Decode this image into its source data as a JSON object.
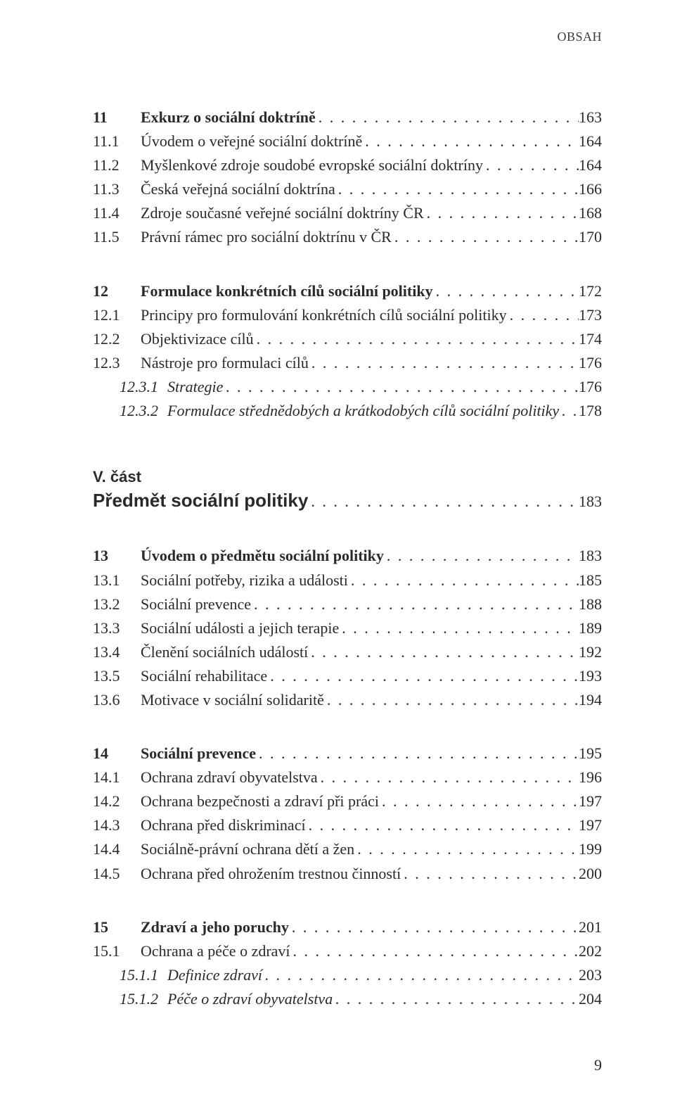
{
  "running_head": "OBSAH",
  "footer_page": "9",
  "leader_dots": ". . . . . . . . . . . . . . . . . . . . . . . . . . . . . . . . . . . . . . . . . . . . . . . . . . . . . . . . . . . . . . . . . . . . . . . . . . . . . . . . . . . . . . . . . . . . . . . . . . . . . . . . . . . . . . . . . . . . . . . .",
  "part": {
    "label": "V. část",
    "title": "Předmět sociální politiky",
    "page": "183"
  },
  "sections": [
    {
      "rows": [
        {
          "num": "11",
          "title": "Exkurz o sociální doktríně",
          "page": "163",
          "style": "bold"
        },
        {
          "num": "11.1",
          "title": "Úvodem o veřejné sociální doktríně",
          "page": "164",
          "style": ""
        },
        {
          "num": "11.2",
          "title": "Myšlenkové zdroje soudobé evropské sociální doktríny",
          "page": "164",
          "style": ""
        },
        {
          "num": "11.3",
          "title": "Česká veřejná sociální doktrína",
          "page": "166",
          "style": ""
        },
        {
          "num": "11.4",
          "title": "Zdroje současné veřejné sociální doktríny ČR",
          "page": "168",
          "style": ""
        },
        {
          "num": "11.5",
          "title": "Právní rámec pro sociální doktrínu v ČR",
          "page": "170",
          "style": ""
        }
      ]
    },
    {
      "rows": [
        {
          "num": "12",
          "title": "Formulace konkrétních cílů sociální politiky",
          "page": "172",
          "style": "bold"
        },
        {
          "num": "12.1",
          "title": "Principy pro formulování konkrétních cílů sociální politiky",
          "page": "173",
          "style": ""
        },
        {
          "num": "12.2",
          "title": "Objektivizace cílů",
          "page": "174",
          "style": ""
        },
        {
          "num": "12.3",
          "title": "Nástroje pro formulaci cílů",
          "page": "176",
          "style": ""
        },
        {
          "num": "12.3.1",
          "title": "Strategie",
          "page": "176",
          "style": "italic",
          "sub": true
        },
        {
          "num": "12.3.2",
          "title": "Formulace střednědobých a krátkodobých cílů sociální politiky",
          "page": "178",
          "style": "italic",
          "sub": true
        }
      ]
    },
    {
      "rows": [
        {
          "num": "13",
          "title": "Úvodem o předmětu sociální politiky",
          "page": "183",
          "style": "bold"
        },
        {
          "num": "13.1",
          "title": "Sociální potřeby, rizika a události",
          "page": "185",
          "style": ""
        },
        {
          "num": "13.2",
          "title": "Sociální prevence",
          "page": "188",
          "style": ""
        },
        {
          "num": "13.3",
          "title": "Sociální události a jejich terapie",
          "page": "189",
          "style": ""
        },
        {
          "num": "13.4",
          "title": "Členění sociálních událostí",
          "page": "192",
          "style": ""
        },
        {
          "num": "13.5",
          "title": "Sociální rehabilitace",
          "page": "193",
          "style": ""
        },
        {
          "num": "13.6",
          "title": "Motivace v sociální solidaritě",
          "page": "194",
          "style": ""
        }
      ]
    },
    {
      "rows": [
        {
          "num": "14",
          "title": "Sociální prevence",
          "page": "195",
          "style": "bold"
        },
        {
          "num": "14.1",
          "title": "Ochrana zdraví obyvatelstva",
          "page": "196",
          "style": ""
        },
        {
          "num": "14.2",
          "title": "Ochrana bezpečnosti a zdraví při práci",
          "page": "197",
          "style": ""
        },
        {
          "num": "14.3",
          "title": "Ochrana před diskriminací",
          "page": "197",
          "style": ""
        },
        {
          "num": "14.4",
          "title": "Sociálně-právní ochrana dětí a žen",
          "page": "199",
          "style": ""
        },
        {
          "num": "14.5",
          "title": "Ochrana před ohrožením trestnou činností",
          "page": "200",
          "style": ""
        }
      ]
    },
    {
      "rows": [
        {
          "num": "15",
          "title": "Zdraví a jeho poruchy",
          "page": "201",
          "style": "bold"
        },
        {
          "num": "15.1",
          "title": "Ochrana a péče o zdraví",
          "page": "202",
          "style": ""
        },
        {
          "num": "15.1.1",
          "title": "Definice zdraví",
          "page": "203",
          "style": "italic",
          "sub": true
        },
        {
          "num": "15.1.2",
          "title": "Péče o zdraví obyvatelstva",
          "page": "204",
          "style": "italic",
          "sub": true
        }
      ]
    }
  ]
}
